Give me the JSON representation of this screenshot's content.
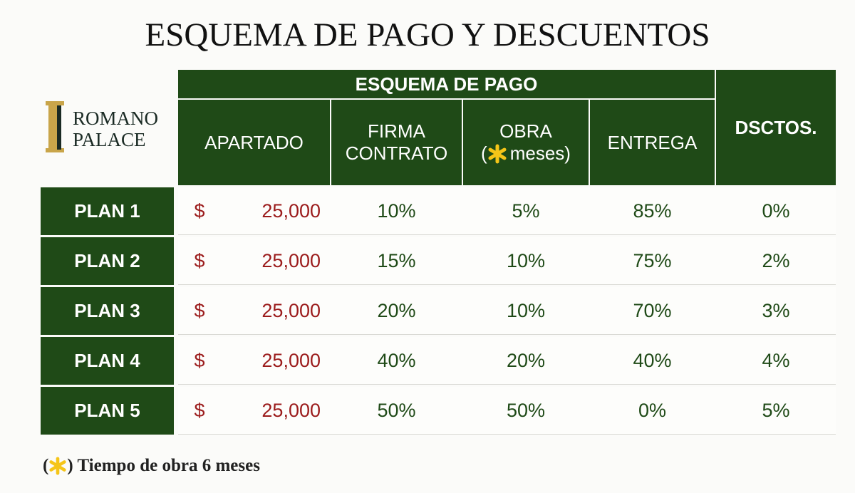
{
  "header": {
    "title": "ESQUEMA DE PAGO Y DESCUENTOS"
  },
  "logo": {
    "line1": "ROMANO",
    "line2": "PALACE"
  },
  "table": {
    "group_header": "ESQUEMA DE PAGO",
    "columns": {
      "apartado": "APARTADO",
      "firma": {
        "line1": "FIRMA",
        "line2": "CONTRATO"
      },
      "obra": {
        "line1": "OBRA",
        "open": "(",
        "after": "meses)"
      },
      "entrega": "ENTREGA",
      "dsctos": "DSCTOS."
    },
    "rows": [
      [
        "PLAN 1",
        "$",
        "25,000",
        "10%",
        "5%",
        "85%",
        "0%"
      ],
      [
        "PLAN 2",
        "$",
        "25,000",
        "15%",
        "10%",
        "75%",
        "2%"
      ],
      [
        "PLAN 3",
        "$",
        "25,000",
        "20%",
        "10%",
        "70%",
        "3%"
      ],
      [
        "PLAN 4",
        "$",
        "25,000",
        "40%",
        "20%",
        "40%",
        "4%"
      ],
      [
        "PLAN 5",
        "$",
        "25,000",
        "50%",
        "50%",
        "0%",
        "5%"
      ]
    ]
  },
  "footnote": {
    "open": "(",
    "text": ") Tiempo de obra 6 meses"
  }
}
